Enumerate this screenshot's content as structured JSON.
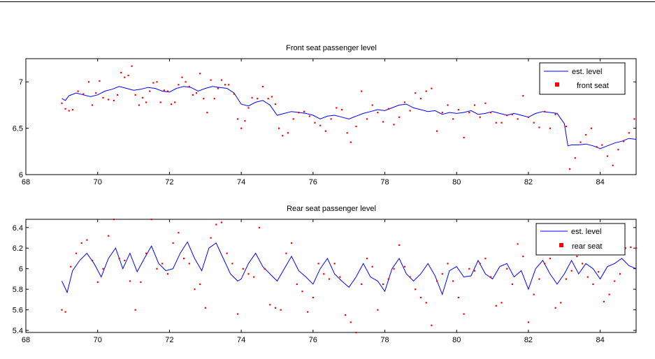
{
  "colors": {
    "est_line": "#0000ff",
    "raw_points": "#ff0000",
    "axes": "#000000",
    "background": "#ffffff"
  },
  "chart_data": [
    {
      "type": "line",
      "title": "Front seat passenger level",
      "xlabel": "",
      "ylabel": "",
      "xlim": [
        68,
        85
      ],
      "ylim": [
        6,
        7.25
      ],
      "xticks": [
        68,
        70,
        72,
        74,
        76,
        78,
        80,
        82,
        84
      ],
      "yticks": [
        6,
        6.5,
        7
      ],
      "ytick_labels": [
        "6",
        "6.5",
        "7"
      ],
      "grid": false,
      "legend_position": "top-right",
      "series": [
        {
          "name": "est. level",
          "style": "line",
          "x": [
            69.0,
            69.1,
            69.2,
            69.4,
            69.6,
            69.8,
            70.0,
            70.2,
            70.4,
            70.6,
            70.8,
            71.0,
            71.2,
            71.4,
            71.6,
            71.8,
            72.0,
            72.2,
            72.4,
            72.6,
            72.8,
            73.0,
            73.2,
            73.4,
            73.6,
            73.8,
            74.0,
            74.2,
            74.4,
            74.6,
            74.8,
            75.0,
            75.2,
            75.4,
            75.6,
            75.8,
            76.0,
            76.2,
            76.4,
            76.6,
            76.8,
            77.0,
            77.2,
            77.4,
            77.6,
            77.8,
            78.0,
            78.2,
            78.4,
            78.6,
            78.8,
            79.0,
            79.2,
            79.4,
            79.6,
            79.8,
            80.0,
            80.2,
            80.4,
            80.6,
            80.8,
            81.0,
            81.2,
            81.4,
            81.6,
            81.8,
            82.0,
            82.2,
            82.4,
            82.6,
            82.8,
            83.0,
            83.1,
            83.2,
            83.4,
            83.6,
            83.8,
            84.0,
            84.2,
            84.4,
            84.6,
            84.8,
            85.0
          ],
          "y": [
            6.82,
            6.8,
            6.85,
            6.88,
            6.86,
            6.84,
            6.86,
            6.9,
            6.92,
            6.95,
            6.93,
            6.91,
            6.92,
            6.94,
            6.93,
            6.9,
            6.89,
            6.93,
            6.95,
            6.94,
            6.9,
            6.93,
            6.95,
            6.94,
            6.93,
            6.88,
            6.76,
            6.74,
            6.78,
            6.8,
            6.75,
            6.64,
            6.66,
            6.68,
            6.67,
            6.66,
            6.64,
            6.6,
            6.63,
            6.64,
            6.62,
            6.6,
            6.63,
            6.66,
            6.68,
            6.7,
            6.69,
            6.72,
            6.75,
            6.76,
            6.72,
            6.7,
            6.68,
            6.69,
            6.65,
            6.67,
            6.66,
            6.67,
            6.69,
            6.65,
            6.66,
            6.68,
            6.66,
            6.64,
            6.66,
            6.64,
            6.62,
            6.66,
            6.68,
            6.67,
            6.66,
            6.55,
            6.31,
            6.32,
            6.32,
            6.33,
            6.31,
            6.28,
            6.31,
            6.34,
            6.36,
            6.39,
            6.38
          ]
        },
        {
          "name": "front seat",
          "style": "points",
          "x": [
            69.0,
            69.1,
            69.2,
            69.3,
            69.45,
            69.6,
            69.75,
            69.85,
            69.95,
            70.05,
            70.15,
            70.3,
            70.45,
            70.55,
            70.65,
            70.75,
            70.85,
            70.95,
            71.05,
            71.15,
            71.25,
            71.35,
            71.45,
            71.55,
            71.65,
            71.75,
            71.85,
            71.95,
            72.05,
            72.15,
            72.25,
            72.35,
            72.45,
            72.55,
            72.65,
            72.75,
            72.85,
            72.95,
            73.05,
            73.15,
            73.25,
            73.35,
            73.45,
            73.55,
            73.65,
            73.8,
            73.9,
            74.0,
            74.1,
            74.2,
            74.3,
            74.45,
            74.6,
            74.75,
            74.85,
            74.95,
            75.05,
            75.15,
            75.3,
            75.45,
            75.6,
            75.75,
            75.9,
            76.05,
            76.2,
            76.35,
            76.5,
            76.65,
            76.8,
            76.95,
            77.05,
            77.2,
            77.35,
            77.5,
            77.65,
            77.8,
            77.95,
            78.1,
            78.25,
            78.4,
            78.55,
            78.7,
            78.85,
            79.0,
            79.15,
            79.3,
            79.45,
            79.6,
            79.75,
            79.9,
            80.05,
            80.2,
            80.35,
            80.5,
            80.65,
            80.8,
            80.95,
            81.1,
            81.25,
            81.4,
            81.55,
            81.7,
            81.85,
            82.0,
            82.15,
            82.3,
            82.45,
            82.6,
            82.75,
            82.9,
            83.05,
            83.15,
            83.3,
            83.45,
            83.6,
            83.75,
            83.9,
            84.05,
            84.2,
            84.35,
            84.5,
            84.65,
            84.8,
            84.95
          ],
          "y": [
            6.77,
            6.71,
            6.69,
            6.7,
            6.9,
            6.87,
            7.0,
            6.75,
            6.88,
            7.01,
            6.83,
            6.81,
            6.8,
            6.86,
            7.1,
            7.05,
            7.07,
            7.17,
            6.86,
            6.75,
            6.83,
            6.78,
            6.9,
            6.99,
            7.0,
            6.78,
            6.91,
            6.9,
            6.76,
            6.78,
            6.97,
            7.05,
            7.0,
            6.95,
            6.86,
            6.88,
            7.09,
            6.82,
            6.67,
            7.02,
            6.82,
            6.93,
            7.02,
            6.97,
            6.97,
            6.87,
            6.6,
            6.5,
            6.58,
            6.72,
            6.83,
            6.82,
            6.95,
            6.82,
            6.84,
            6.76,
            6.5,
            6.42,
            6.45,
            6.6,
            6.67,
            6.68,
            6.63,
            6.56,
            6.53,
            6.47,
            6.6,
            6.72,
            6.7,
            6.45,
            6.35,
            6.52,
            6.9,
            6.6,
            6.75,
            6.67,
            6.57,
            6.71,
            6.54,
            6.62,
            6.78,
            6.69,
            6.88,
            6.82,
            6.9,
            6.93,
            6.47,
            6.67,
            6.75,
            6.6,
            6.7,
            6.4,
            6.67,
            6.75,
            6.62,
            6.77,
            6.67,
            6.56,
            6.56,
            6.64,
            6.65,
            6.6,
            6.85,
            6.62,
            6.56,
            6.51,
            6.68,
            6.5,
            6.65,
            6.88,
            6.52,
            6.06,
            6.18,
            6.35,
            6.43,
            6.5,
            6.3,
            6.32,
            6.2,
            6.1,
            6.27,
            6.36,
            6.45,
            6.6
          ]
        }
      ]
    },
    {
      "type": "line",
      "title": "Rear seat passenger level",
      "xlabel": "",
      "ylabel": "",
      "xlim": [
        68,
        85
      ],
      "ylim": [
        5.38,
        6.48
      ],
      "xticks": [
        68,
        70,
        72,
        74,
        76,
        78,
        80,
        82,
        84
      ],
      "yticks": [
        5.4,
        5.6,
        5.8,
        6.0,
        6.2,
        6.4
      ],
      "ytick_labels": [
        "5.4",
        "5.6",
        "5.8",
        "6",
        "6.2",
        "6.4"
      ],
      "grid": false,
      "legend_position": "top-right",
      "series": [
        {
          "name": "est. level",
          "style": "line",
          "x": [
            69.0,
            69.15,
            69.3,
            69.5,
            69.7,
            69.9,
            70.1,
            70.3,
            70.5,
            70.7,
            70.9,
            71.1,
            71.3,
            71.5,
            71.7,
            71.9,
            72.1,
            72.3,
            72.5,
            72.7,
            72.9,
            73.1,
            73.3,
            73.5,
            73.7,
            73.9,
            74.0,
            74.2,
            74.4,
            74.6,
            74.8,
            75.0,
            75.2,
            75.4,
            75.6,
            75.8,
            76.0,
            76.2,
            76.4,
            76.6,
            76.8,
            77.0,
            77.2,
            77.4,
            77.6,
            77.8,
            78.0,
            78.2,
            78.4,
            78.6,
            78.8,
            79.0,
            79.2,
            79.4,
            79.6,
            79.8,
            80.0,
            80.2,
            80.4,
            80.6,
            80.8,
            81.0,
            81.2,
            81.4,
            81.6,
            81.8,
            82.0,
            82.2,
            82.4,
            82.6,
            82.8,
            83.0,
            83.2,
            83.4,
            83.6,
            83.8,
            84.0,
            84.2,
            84.4,
            84.6,
            84.8,
            85.0
          ],
          "y": [
            5.88,
            5.77,
            5.98,
            6.08,
            6.15,
            6.05,
            5.92,
            6.1,
            6.2,
            6.0,
            6.15,
            5.97,
            6.1,
            6.22,
            6.05,
            5.98,
            6.0,
            6.15,
            6.26,
            6.1,
            5.98,
            6.2,
            6.25,
            6.1,
            5.95,
            5.88,
            5.9,
            6.05,
            6.15,
            6.02,
            5.95,
            5.88,
            6.0,
            6.12,
            5.98,
            5.92,
            5.85,
            6.0,
            6.1,
            5.95,
            5.88,
            5.82,
            5.92,
            6.05,
            5.92,
            5.88,
            5.78,
            6.0,
            6.1,
            5.95,
            5.88,
            5.95,
            6.05,
            5.93,
            5.75,
            5.98,
            6.02,
            5.92,
            5.93,
            6.08,
            5.95,
            5.9,
            6.02,
            6.05,
            5.92,
            5.98,
            5.8,
            6.0,
            6.08,
            5.95,
            5.85,
            5.95,
            6.08,
            5.95,
            6.05,
            6.0,
            5.9,
            6.02,
            6.05,
            6.1,
            6.03,
            6.0
          ]
        },
        {
          "name": "rear seat",
          "style": "points",
          "x": [
            69.0,
            69.1,
            69.25,
            69.4,
            69.55,
            69.7,
            69.85,
            70.0,
            70.15,
            70.3,
            70.45,
            70.6,
            70.75,
            70.9,
            71.05,
            71.2,
            71.35,
            71.5,
            71.65,
            71.8,
            71.95,
            72.1,
            72.25,
            72.4,
            72.55,
            72.7,
            72.85,
            73.0,
            73.15,
            73.3,
            73.45,
            73.6,
            73.75,
            73.9,
            74.05,
            74.2,
            74.35,
            74.5,
            74.65,
            74.8,
            74.95,
            75.1,
            75.25,
            75.4,
            75.55,
            75.7,
            75.85,
            76.0,
            76.15,
            76.3,
            76.45,
            76.6,
            76.75,
            76.9,
            77.05,
            77.2,
            77.35,
            77.5,
            77.65,
            77.8,
            77.95,
            78.1,
            78.25,
            78.4,
            78.55,
            78.7,
            78.85,
            79.0,
            79.15,
            79.3,
            79.45,
            79.6,
            79.75,
            79.9,
            80.05,
            80.2,
            80.35,
            80.5,
            80.65,
            80.8,
            80.95,
            81.1,
            81.25,
            81.4,
            81.55,
            81.7,
            81.85,
            82.0,
            82.15,
            82.3,
            82.45,
            82.6,
            82.75,
            82.9,
            83.05,
            83.2,
            83.35,
            83.5,
            83.65,
            83.8,
            83.95,
            84.1,
            84.25,
            84.4,
            84.55,
            84.7,
            84.85,
            85.0
          ],
          "y": [
            5.6,
            5.58,
            6.02,
            6.15,
            6.25,
            6.28,
            6.08,
            5.87,
            6.0,
            6.32,
            6.48,
            6.1,
            6.08,
            5.88,
            5.6,
            5.87,
            6.15,
            6.48,
            6.0,
            6.05,
            5.95,
            6.25,
            6.35,
            6.1,
            6.05,
            5.8,
            5.85,
            5.62,
            6.3,
            6.43,
            6.45,
            6.15,
            6.05,
            5.56,
            6.0,
            5.95,
            5.92,
            6.4,
            6.0,
            5.65,
            5.62,
            5.6,
            6.15,
            6.25,
            5.85,
            5.78,
            5.58,
            5.72,
            6.05,
            5.95,
            5.9,
            6.05,
            5.92,
            5.55,
            5.48,
            5.38,
            5.85,
            6.1,
            6.02,
            5.6,
            5.85,
            5.9,
            6.0,
            6.23,
            6.02,
            5.92,
            5.8,
            5.72,
            5.67,
            5.45,
            5.88,
            5.95,
            6.05,
            5.88,
            5.72,
            5.56,
            6.0,
            5.98,
            6.05,
            6.1,
            5.92,
            5.64,
            5.67,
            6.0,
            5.85,
            6.24,
            6.12,
            5.48,
            5.75,
            5.9,
            6.05,
            6.1,
            5.62,
            5.67,
            5.9,
            5.98,
            6.12,
            6.05,
            5.92,
            5.85,
            5.97,
            5.68,
            5.75,
            5.88,
            5.95,
            6.2,
            6.21,
            6.2
          ]
        }
      ]
    }
  ]
}
